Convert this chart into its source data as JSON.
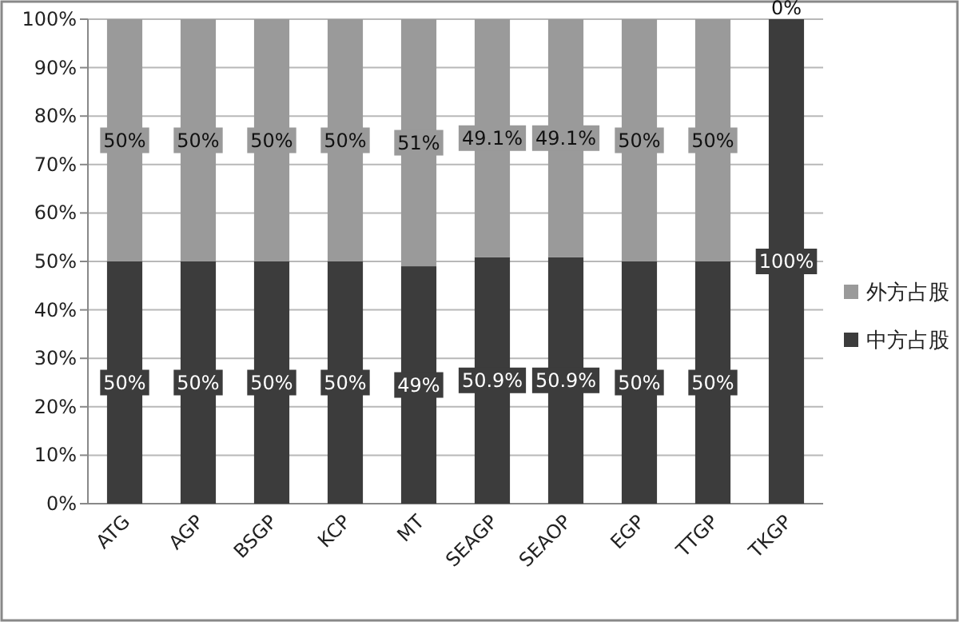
{
  "chart_data": {
    "type": "bar",
    "stacked": true,
    "categories": [
      "ATG",
      "AGP",
      "BSGP",
      "KCP",
      "MT",
      "SEAGP",
      "SEAOP",
      "EGP",
      "TTGP",
      "TKGP"
    ],
    "series": [
      {
        "name": "中方占股",
        "color": "#3c3c3c",
        "values": [
          50,
          50,
          50,
          50,
          49,
          50.9,
          50.9,
          50,
          50,
          100
        ],
        "value_labels": [
          "50%",
          "50%",
          "50%",
          "50%",
          "49%",
          "50.9%",
          "50.9%",
          "50%",
          "50%",
          "100%"
        ]
      },
      {
        "name": "外方占股",
        "color": "#9a9a9a",
        "values": [
          50,
          50,
          50,
          50,
          51,
          49.1,
          49.1,
          50,
          50,
          0
        ],
        "value_labels": [
          "50%",
          "50%",
          "50%",
          "50%",
          "51%",
          "49.1%",
          "49.1%",
          "50%",
          "50%",
          "0%"
        ]
      }
    ],
    "ylim": [
      0,
      100
    ],
    "yticks": [
      {
        "value": 0,
        "label": "0%"
      },
      {
        "value": 10,
        "label": "10%"
      },
      {
        "value": 20,
        "label": "20%"
      },
      {
        "value": 30,
        "label": "30%"
      },
      {
        "value": 40,
        "label": "40%"
      },
      {
        "value": 50,
        "label": "50%"
      },
      {
        "value": 60,
        "label": "60%"
      },
      {
        "value": 70,
        "label": "70%"
      },
      {
        "value": 80,
        "label": "80%"
      },
      {
        "value": 90,
        "label": "90%"
      },
      {
        "value": 100,
        "label": "100%"
      }
    ],
    "grid": "y",
    "legend": "right"
  }
}
